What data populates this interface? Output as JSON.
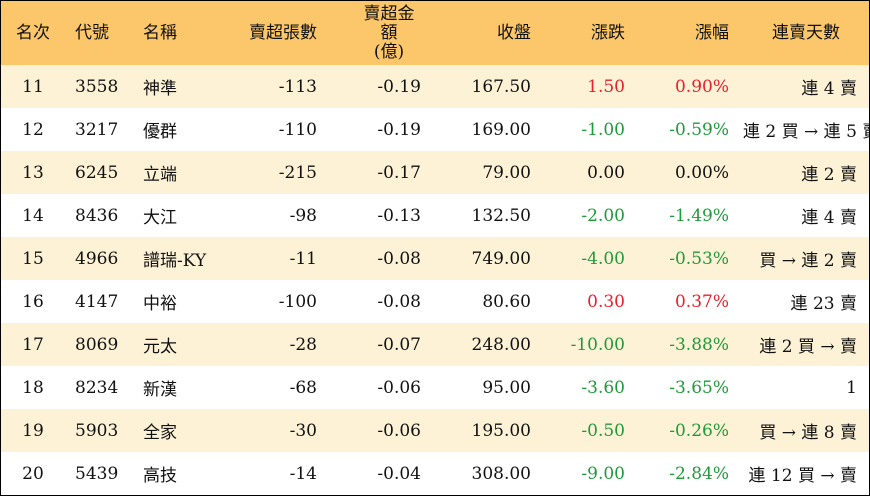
{
  "headers": {
    "rank": "名次",
    "code": "代號",
    "name": "名稱",
    "volume": "賣超張數",
    "amount_line1": "賣超金額",
    "amount_line2": "(億)",
    "close": "收盤",
    "change": "漲跌",
    "pct": "漲幅",
    "streak": "連賣天數"
  },
  "colors": {
    "header_bg": "#fcc76a",
    "stripe_bg": "#fdf2d6",
    "up": "#e8202a",
    "down": "#1f9a3a"
  },
  "rows": [
    {
      "rank": "11",
      "code": "3558",
      "name": "神準",
      "volume": "-113",
      "amount": "-0.19",
      "close": "167.50",
      "change": "1.50",
      "pct": "0.90%",
      "dir": "up",
      "streak": "連 4 賣"
    },
    {
      "rank": "12",
      "code": "3217",
      "name": "優群",
      "volume": "-110",
      "amount": "-0.19",
      "close": "169.00",
      "change": "-1.00",
      "pct": "-0.59%",
      "dir": "down",
      "streak": "連 2 買 → 連 5 賣"
    },
    {
      "rank": "13",
      "code": "6245",
      "name": "立端",
      "volume": "-215",
      "amount": "-0.17",
      "close": "79.00",
      "change": "0.00",
      "pct": "0.00%",
      "dir": "flat",
      "streak": "連 2 賣"
    },
    {
      "rank": "14",
      "code": "8436",
      "name": "大江",
      "volume": "-98",
      "amount": "-0.13",
      "close": "132.50",
      "change": "-2.00",
      "pct": "-1.49%",
      "dir": "down",
      "streak": "連 4 賣"
    },
    {
      "rank": "15",
      "code": "4966",
      "name": "譜瑞-KY",
      "volume": "-11",
      "amount": "-0.08",
      "close": "749.00",
      "change": "-4.00",
      "pct": "-0.53%",
      "dir": "down",
      "streak": "買 → 連 2 賣"
    },
    {
      "rank": "16",
      "code": "4147",
      "name": "中裕",
      "volume": "-100",
      "amount": "-0.08",
      "close": "80.60",
      "change": "0.30",
      "pct": "0.37%",
      "dir": "up",
      "streak": "連 23 賣"
    },
    {
      "rank": "17",
      "code": "8069",
      "name": "元太",
      "volume": "-28",
      "amount": "-0.07",
      "close": "248.00",
      "change": "-10.00",
      "pct": "-3.88%",
      "dir": "down",
      "streak": "連 2 買 → 賣"
    },
    {
      "rank": "18",
      "code": "8234",
      "name": "新漢",
      "volume": "-68",
      "amount": "-0.06",
      "close": "95.00",
      "change": "-3.60",
      "pct": "-3.65%",
      "dir": "down",
      "streak": "1"
    },
    {
      "rank": "19",
      "code": "5903",
      "name": "全家",
      "volume": "-30",
      "amount": "-0.06",
      "close": "195.00",
      "change": "-0.50",
      "pct": "-0.26%",
      "dir": "down",
      "streak": "買 → 連 8 賣"
    },
    {
      "rank": "20",
      "code": "5439",
      "name": "高技",
      "volume": "-14",
      "amount": "-0.04",
      "close": "308.00",
      "change": "-9.00",
      "pct": "-2.84%",
      "dir": "down",
      "streak": "連 12 買 → 賣"
    }
  ]
}
